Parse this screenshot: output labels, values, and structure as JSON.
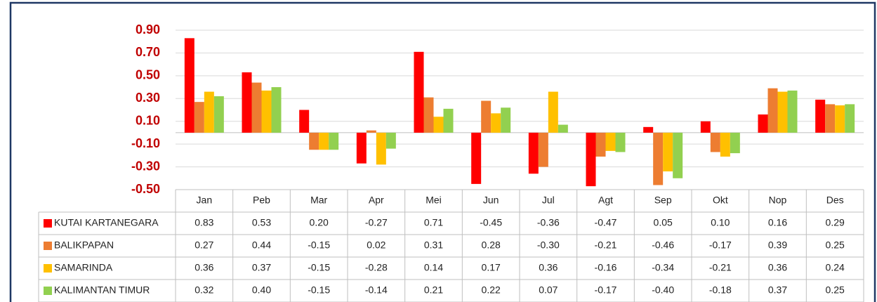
{
  "chart_data": {
    "type": "bar",
    "categories": [
      "Jan",
      "Peb",
      "Mar",
      "Apr",
      "Mei",
      "Jun",
      "Jul",
      "Agt",
      "Sep",
      "Okt",
      "Nop",
      "Des"
    ],
    "series": [
      {
        "name": "KUTAI KARTANEGARA",
        "color": "#ff0000",
        "values": [
          0.83,
          0.53,
          0.2,
          -0.27,
          0.71,
          -0.45,
          -0.36,
          -0.47,
          0.05,
          0.1,
          0.16,
          0.29
        ],
        "value_labels": [
          "0.83",
          "0.53",
          "0.20",
          "-0.27",
          "0.71",
          "-0.45",
          "-0.36",
          "-0.47",
          "0.05",
          "0.10",
          "0.16",
          "0.29"
        ]
      },
      {
        "name": "BALIKPAPAN",
        "color": "#ed7d31",
        "values": [
          0.27,
          0.44,
          -0.15,
          0.02,
          0.31,
          0.28,
          -0.3,
          -0.21,
          -0.46,
          -0.17,
          0.39,
          0.25
        ],
        "value_labels": [
          "0.27",
          "0.44",
          "-0.15",
          "0.02",
          "0.31",
          "0.28",
          "-0.30",
          "-0.21",
          "-0.46",
          "-0.17",
          "0.39",
          "0.25"
        ]
      },
      {
        "name": "SAMARINDA",
        "color": "#ffc000",
        "values": [
          0.36,
          0.37,
          -0.15,
          -0.28,
          0.14,
          0.17,
          0.36,
          -0.16,
          -0.34,
          -0.21,
          0.36,
          0.24
        ],
        "value_labels": [
          "0.36",
          "0.37",
          "-0.15",
          "-0.28",
          "0.14",
          "0.17",
          "0.36",
          "-0.16",
          "-0.34",
          "-0.21",
          "0.36",
          "0.24"
        ]
      },
      {
        "name": "KALIMANTAN TIMUR",
        "color": "#92d050",
        "values": [
          0.32,
          0.4,
          -0.15,
          -0.14,
          0.21,
          0.22,
          0.07,
          -0.17,
          -0.4,
          -0.18,
          0.37,
          0.25
        ],
        "value_labels": [
          "0.32",
          "0.40",
          "-0.15",
          "-0.14",
          "0.21",
          "0.22",
          "0.07",
          "-0.17",
          "-0.40",
          "-0.18",
          "0.37",
          "0.25"
        ]
      }
    ],
    "ylim": [
      -0.5,
      0.9
    ],
    "yticks": [
      {
        "value": 0.9,
        "label": "0.90"
      },
      {
        "value": 0.7,
        "label": "0.70"
      },
      {
        "value": 0.5,
        "label": "0.50"
      },
      {
        "value": 0.3,
        "label": "0.30"
      },
      {
        "value": 0.1,
        "label": "0.10"
      },
      {
        "value": -0.1,
        "label": "-0.10"
      },
      {
        "value": -0.3,
        "label": "-0.30"
      },
      {
        "value": -0.5,
        "label": "-0.50"
      }
    ],
    "grid": true
  }
}
